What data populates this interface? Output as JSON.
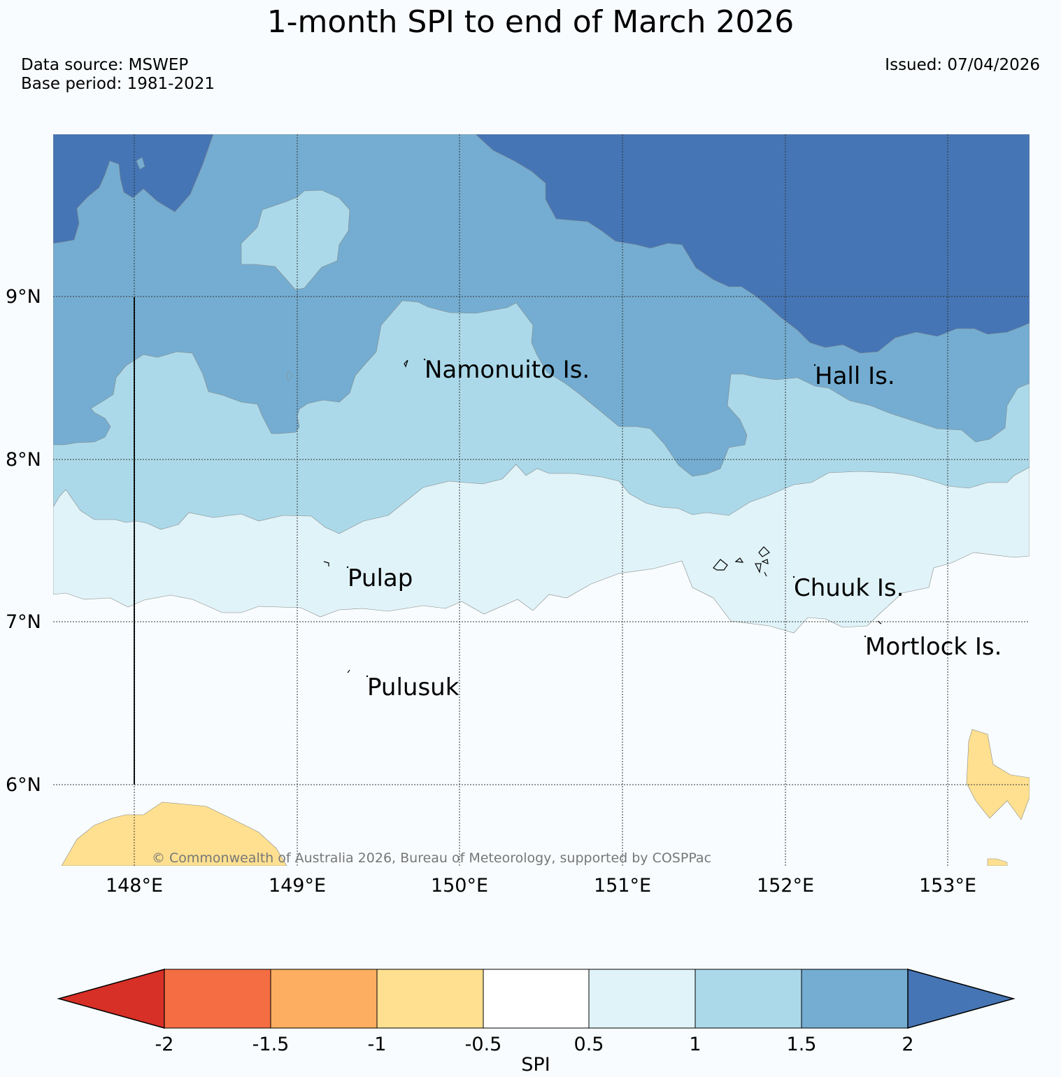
{
  "header": {
    "title": "1-month SPI to end of March 2026",
    "data_source": "Data source: MSWEP",
    "base_period": "Base period: 1981-2021",
    "issued": "Issued: 07/04/2026"
  },
  "map": {
    "lat_ticks": [
      "9°N",
      "8°N",
      "7°N",
      "6°N"
    ],
    "lon_ticks": [
      "148°E",
      "149°E",
      "150°E",
      "151°E",
      "152°E",
      "153°E"
    ],
    "places": [
      "Namonuito Is.",
      "Hall Is.",
      "Pulap",
      "Chuuk Is.",
      "Mortlock Is.",
      "Pulusuk"
    ],
    "copyright": "© Commonwealth of Australia 2026, Bureau of Meteorology, supported by COSPPac"
  },
  "legend": {
    "label": "SPI",
    "ticks": [
      "-2",
      "-1.5",
      "-1",
      "-0.5",
      "0.5",
      "1",
      "1.5",
      "2"
    ],
    "colors": [
      "#d73027",
      "#f46d43",
      "#fdae61",
      "#fee090",
      "#ffffff",
      "#e0f3f8",
      "#abd9e9",
      "#74add1",
      "#4575b4"
    ]
  }
}
